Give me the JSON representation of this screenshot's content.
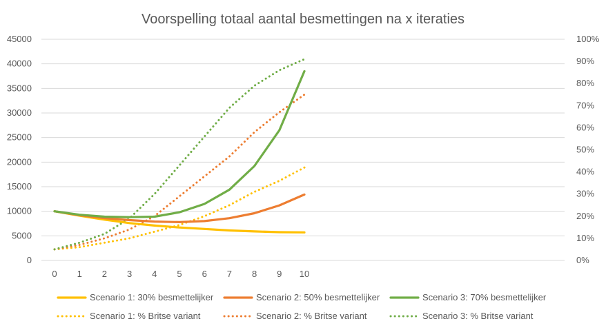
{
  "chart_data": {
    "type": "line",
    "title": "Voorspelling totaal aantal besmettingen na x iteraties",
    "x": [
      0,
      1,
      2,
      3,
      4,
      5,
      6,
      7,
      8,
      9,
      10
    ],
    "x_tick_labels": [
      "0",
      "1",
      "2",
      "3",
      "4",
      "5",
      "6",
      "7",
      "8",
      "9",
      "10"
    ],
    "y_left": {
      "min": 0,
      "max": 45000,
      "step": 5000,
      "tick_labels": [
        "0",
        "5000",
        "10000",
        "15000",
        "20000",
        "25000",
        "30000",
        "35000",
        "40000",
        "45000"
      ]
    },
    "y_right": {
      "min": 0,
      "max": 1,
      "step": 0.1,
      "tick_labels": [
        "0%",
        "10%",
        "20%",
        "30%",
        "40%",
        "50%",
        "60%",
        "70%",
        "80%",
        "90%",
        "100%"
      ]
    },
    "grid": true,
    "legend_position": "bottom",
    "series": [
      {
        "name": "Scenario 1: 30% besmettelijker",
        "axis": "left",
        "style": "solid",
        "color": "#FFC000",
        "values": [
          10000,
          9100,
          8300,
          7600,
          7100,
          6700,
          6400,
          6100,
          5900,
          5750,
          5700
        ]
      },
      {
        "name": "Scenario 2: 50% besmettelijker",
        "axis": "left",
        "style": "solid",
        "color": "#ED7D31",
        "values": [
          10000,
          9200,
          8600,
          8200,
          7900,
          7800,
          8000,
          8600,
          9600,
          11200,
          13400
        ]
      },
      {
        "name": "Scenario 3: 70% besmettelijker",
        "axis": "left",
        "style": "solid",
        "color": "#70AD47",
        "values": [
          10000,
          9300,
          8900,
          8800,
          8900,
          9800,
          11500,
          14400,
          19200,
          26500,
          38500
        ]
      },
      {
        "name": "Scenario 1: % Britse variant",
        "axis": "right",
        "style": "dotted",
        "color": "#FFC000",
        "values": [
          0.05,
          0.06,
          0.08,
          0.1,
          0.13,
          0.16,
          0.2,
          0.25,
          0.31,
          0.36,
          0.42
        ]
      },
      {
        "name": "Scenario 2: % Britse variant",
        "axis": "right",
        "style": "dotted",
        "color": "#ED7D31",
        "values": [
          0.05,
          0.07,
          0.1,
          0.14,
          0.2,
          0.29,
          0.38,
          0.47,
          0.58,
          0.67,
          0.75
        ]
      },
      {
        "name": "Scenario 3: % Britse variant",
        "axis": "right",
        "style": "dotted",
        "color": "#70AD47",
        "values": [
          0.05,
          0.08,
          0.12,
          0.19,
          0.3,
          0.43,
          0.56,
          0.69,
          0.79,
          0.86,
          0.91
        ]
      }
    ]
  }
}
